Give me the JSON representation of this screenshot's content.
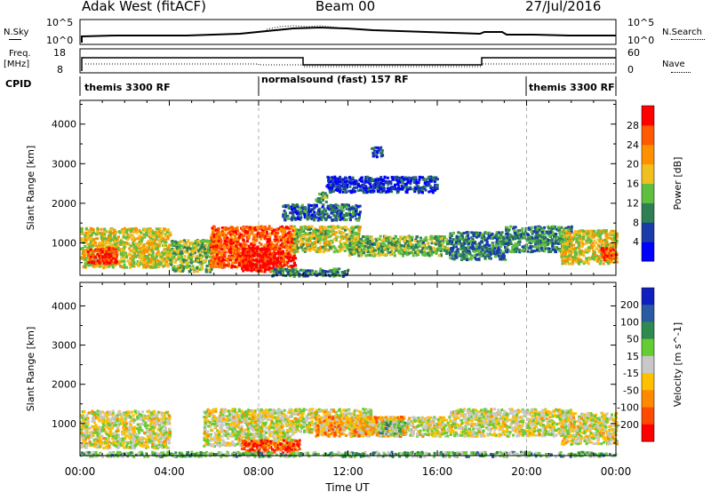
{
  "header": {
    "station": "Adak West (fitACF)",
    "beam": "Beam 00",
    "date": "27/Jul/2016"
  },
  "summary_panels": {
    "nsky_label": "N.Sky",
    "freq_label_top": "Freq.",
    "freq_label_unit": "[MHz]",
    "cpid_label": "CPID",
    "nsearch_label": "N.Search",
    "nave_label": "Nave",
    "nsky_ticks": [
      "10^5",
      "10^0"
    ],
    "nsearch_ticks": [
      "10^5",
      "10^0"
    ],
    "freq_ticks": [
      "18",
      "8"
    ],
    "nave_ticks": [
      "60",
      "0"
    ]
  },
  "cpid": [
    {
      "label": "themis 3300 RF",
      "start_hour": 0,
      "end_hour": 8
    },
    {
      "label": "normalsound (fast) 157 RF",
      "start_hour": 8,
      "end_hour": 20
    },
    {
      "label": "themis 3300 RF",
      "start_hour": 20,
      "end_hour": 24
    }
  ],
  "time_axis": {
    "title": "Time UT",
    "ticks": [
      "00:00",
      "04:00",
      "08:00",
      "12:00",
      "16:00",
      "20:00",
      "00:00"
    ]
  },
  "chart_data": [
    {
      "type": "heatmap",
      "ylabel": "Slant Range [km]",
      "yticks": [
        1000,
        2000,
        3000,
        4000
      ],
      "ylim": [
        180,
        4600
      ],
      "xlim_hours": [
        0,
        24
      ],
      "colorbar": {
        "label": "Power [dB]",
        "ticks": [
          "4",
          "8",
          "12",
          "16",
          "20",
          "24",
          "28"
        ],
        "colors": [
          "#0000ff",
          "#1a3caa",
          "#2f7f55",
          "#5fbf3f",
          "#f0c020",
          "#ff9000",
          "#ff5a00",
          "#ff0000"
        ]
      },
      "regions": [
        {
          "h0": 0.0,
          "h1": 4.0,
          "r0": 400,
          "r1": 1400,
          "level": 0.55
        },
        {
          "h0": 0.3,
          "h1": 1.6,
          "r0": 500,
          "r1": 900,
          "level": 0.9
        },
        {
          "h0": 4.0,
          "h1": 6.0,
          "r0": 300,
          "r1": 1100,
          "level": 0.45
        },
        {
          "h0": 5.8,
          "h1": 9.6,
          "r0": 400,
          "r1": 1450,
          "level": 0.82
        },
        {
          "h0": 7.2,
          "h1": 9.0,
          "r0": 300,
          "r1": 900,
          "level": 0.95
        },
        {
          "h0": 9.5,
          "h1": 12.5,
          "r0": 800,
          "r1": 1450,
          "level": 0.5
        },
        {
          "h0": 12.0,
          "h1": 16.5,
          "r0": 700,
          "r1": 1200,
          "level": 0.42
        },
        {
          "h0": 16.5,
          "h1": 19.0,
          "r0": 600,
          "r1": 1300,
          "level": 0.3
        },
        {
          "h0": 19.0,
          "h1": 22.0,
          "r0": 800,
          "r1": 1450,
          "level": 0.32
        },
        {
          "h0": 21.5,
          "h1": 24.0,
          "r0": 500,
          "r1": 1350,
          "level": 0.55
        },
        {
          "h0": 23.3,
          "h1": 24.0,
          "r0": 600,
          "r1": 900,
          "level": 0.85
        },
        {
          "h0": 8.5,
          "h1": 12.0,
          "r0": 180,
          "r1": 380,
          "level": 0.3
        },
        {
          "h0": 10.5,
          "h1": 11.0,
          "r0": 2050,
          "r1": 2300,
          "level": 0.4
        },
        {
          "h0": 9.0,
          "h1": 12.5,
          "r0": 1600,
          "r1": 2000,
          "level": 0.25
        },
        {
          "h0": 13.0,
          "h1": 13.5,
          "r0": 3200,
          "r1": 3450,
          "level": 0.2
        },
        {
          "h0": 11.0,
          "h1": 16.0,
          "r0": 2300,
          "r1": 2700,
          "level": 0.15
        }
      ]
    },
    {
      "type": "heatmap",
      "ylabel": "Slant Range [km]",
      "yticks": [
        1000,
        2000,
        3000,
        4000
      ],
      "ylim": [
        180,
        4600
      ],
      "xlim_hours": [
        0,
        24
      ],
      "colorbar": {
        "label": "Velocity [m s^-1]",
        "ticks": [
          "200",
          "100",
          "50",
          "15",
          "-15",
          "-50",
          "-100",
          "-200"
        ],
        "colors": [
          "#1020c0",
          "#2a5aa0",
          "#2e8a4e",
          "#66cc33",
          "#c8c8c8",
          "#ffc000",
          "#ff8a00",
          "#ff4a00",
          "#ff0000"
        ]
      },
      "regions": [
        {
          "h0": 0.0,
          "h1": 4.0,
          "r0": 400,
          "r1": 1350,
          "level": 0.52
        },
        {
          "h0": 5.5,
          "h1": 9.5,
          "r0": 450,
          "r1": 1400,
          "level": 0.52
        },
        {
          "h0": 9.5,
          "h1": 13.0,
          "r0": 800,
          "r1": 1400,
          "level": 0.52
        },
        {
          "h0": 12.0,
          "h1": 16.5,
          "r0": 700,
          "r1": 1200,
          "level": 0.52
        },
        {
          "h0": 16.5,
          "h1": 22.0,
          "r0": 700,
          "r1": 1400,
          "level": 0.52
        },
        {
          "h0": 21.5,
          "h1": 24.0,
          "r0": 500,
          "r1": 1300,
          "level": 0.52
        },
        {
          "h0": 10.5,
          "h1": 14.5,
          "r0": 700,
          "r1": 1200,
          "level": 0.66
        },
        {
          "h0": 13.3,
          "h1": 14.5,
          "r0": 750,
          "r1": 1100,
          "level": 0.38
        },
        {
          "h0": 7.2,
          "h1": 9.8,
          "r0": 250,
          "r1": 600,
          "level": 0.85
        },
        {
          "h0": 0.0,
          "h1": 24.0,
          "r0": 180,
          "r1": 300,
          "level": 0.38
        }
      ]
    }
  ]
}
